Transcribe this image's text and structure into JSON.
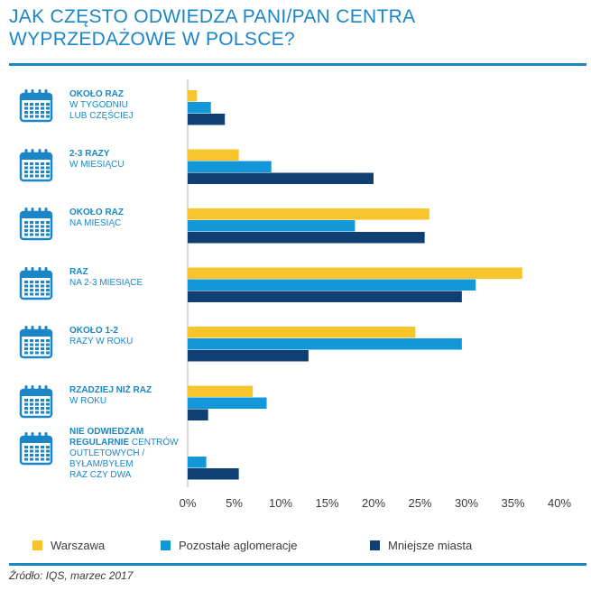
{
  "title_lines": [
    "JAK CZĘSTO ODWIEDZA PANI/PAN CENTRA",
    "WYPRZEDAŻOWE W POLSCE?"
  ],
  "source": "Źródło: IQS, marzec 2017",
  "colors": {
    "accent": "#1a86c8",
    "warszawa": "#f7c42c",
    "pozostale": "#1297d8",
    "mniejsze": "#0f3f73",
    "axis": "#d9d9d9",
    "text": "#3a3a3a"
  },
  "icon": "calendar-icon",
  "chart_data": {
    "type": "bar",
    "orientation": "horizontal",
    "title": "JAK CZĘSTO ODWIEDZA PANI/PAN CENTRA WYPRZEDAŻOWE W POLSCE?",
    "categories": [
      {
        "bold": "OKOŁO RAZ",
        "rest": "W TYGODNIU LUB CZĘŚCIEJ",
        "lines": [
          [
            "OKOŁO RAZ",
            ""
          ],
          [
            "",
            "W TYGODNIU"
          ],
          [
            "",
            "LUB CZĘŚCIEJ"
          ]
        ]
      },
      {
        "bold": "2-3 RAZY",
        "rest": "W MIESIĄCU",
        "lines": [
          [
            "2-3 RAZY",
            ""
          ],
          [
            "",
            "W MIESIĄCU"
          ]
        ]
      },
      {
        "bold": "OKOŁO RAZ",
        "rest": "NA MIESIĄC",
        "lines": [
          [
            "OKOŁO RAZ",
            ""
          ],
          [
            "",
            "NA MIESIĄC"
          ]
        ]
      },
      {
        "bold": "RAZ",
        "rest": "NA 2-3 MIESIĄCE",
        "lines": [
          [
            "RAZ",
            ""
          ],
          [
            "",
            "NA 2-3 MIESIĄCE"
          ]
        ]
      },
      {
        "bold": "OKOŁO 1-2",
        "rest": "RAZY W ROKU",
        "lines": [
          [
            "OKOŁO 1-2",
            ""
          ],
          [
            "",
            "RAZY W ROKU"
          ]
        ]
      },
      {
        "bold": "RZADZIEJ NIŻ RAZ",
        "rest": "W ROKU",
        "lines": [
          [
            "RZADZIEJ NIŻ RAZ",
            ""
          ],
          [
            "",
            "W ROKU"
          ]
        ]
      },
      {
        "bold": "NIE ODWIEDZAM REGULARNIE",
        "rest": "CENTRÓW OUTLETOWYCH / BYŁAM/BYŁEM RAZ CZY DWA",
        "lines": [
          [
            "NIE ODWIEDZAM",
            ""
          ],
          [
            "REGULARNIE",
            " CENTRÓW"
          ],
          [
            "",
            "OUTLETOWYCH /"
          ],
          [
            "",
            "BYŁAM/BYŁEM"
          ],
          [
            "",
            "RAZ CZY DWA"
          ]
        ]
      }
    ],
    "series": [
      {
        "name": "Warszawa",
        "color": "#f7c42c",
        "values": [
          1,
          5.5,
          26,
          36,
          24.5,
          7,
          0
        ]
      },
      {
        "name": "Pozostałe aglomeracje",
        "color": "#1297d8",
        "values": [
          2.5,
          9,
          18,
          31,
          29.5,
          8.5,
          2
        ]
      },
      {
        "name": "Mniejsze miasta",
        "color": "#0f3f73",
        "values": [
          4,
          20,
          25.5,
          29.5,
          13,
          2.2,
          5.5
        ]
      }
    ],
    "xlim": [
      0,
      40
    ],
    "xticks": [
      0,
      5,
      10,
      15,
      20,
      25,
      30,
      35,
      40
    ],
    "xtick_labels": [
      "0%",
      "5%",
      "10%",
      "15%",
      "20%",
      "25%",
      "30%",
      "35%",
      "40%"
    ],
    "xlabel": "",
    "ylabel": "",
    "grid": false,
    "legend_position": "bottom"
  }
}
